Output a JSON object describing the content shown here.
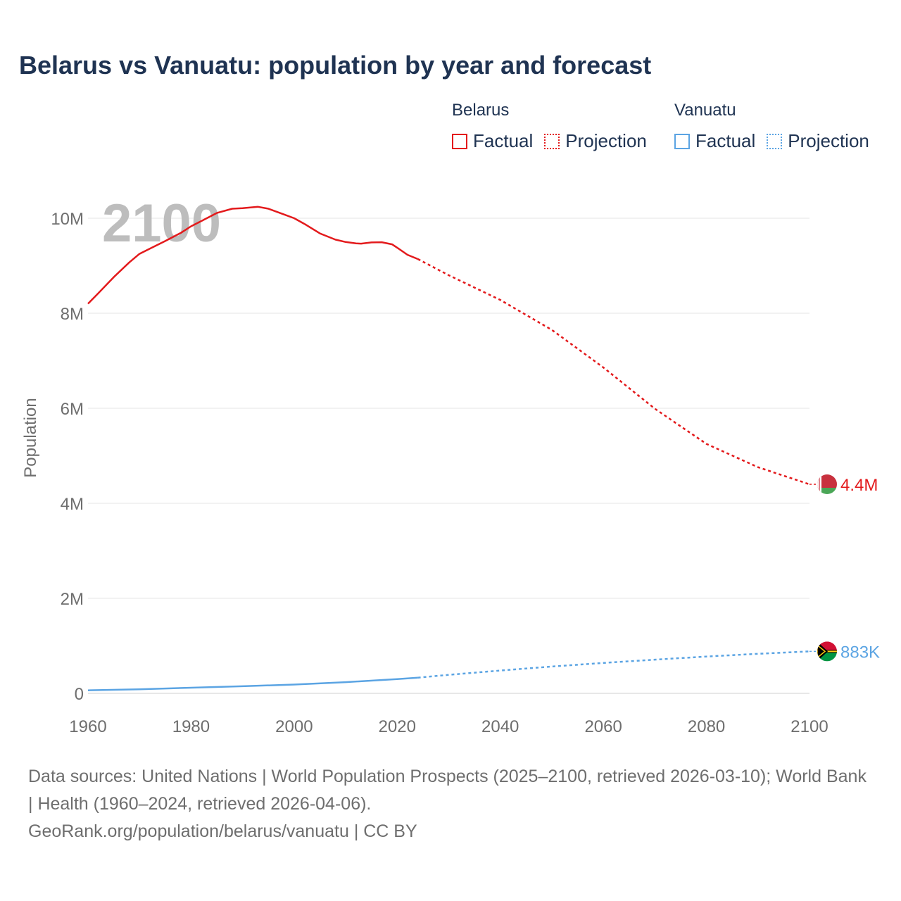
{
  "title": "Belarus vs Vanuatu: population by year and forecast",
  "legend": {
    "groups": [
      {
        "name": "Belarus",
        "color": "#e31a1c",
        "factual_label": "Factual",
        "projection_label": "Projection"
      },
      {
        "name": "Vanuatu",
        "color": "#5ba4e3",
        "factual_label": "Factual",
        "projection_label": "Projection"
      }
    ]
  },
  "footer": {
    "sources": "Data sources: United Nations | World Population Prospects (2025–2100, retrieved 2026-03-10); World Bank | Health (1960–2024, retrieved 2026-04-06).",
    "credit": "GeoRank.org/population/belarus/vanuatu | CC BY"
  },
  "chart_data": {
    "type": "line",
    "title": "Belarus vs Vanuatu: population by year and forecast",
    "ylabel": "Population",
    "xlabel": "",
    "year_overlay": "2100",
    "xlim": [
      1960,
      2100
    ],
    "ylim": [
      0,
      10000000
    ],
    "x_ticks": [
      1960,
      1980,
      2000,
      2020,
      2040,
      2060,
      2080,
      2100
    ],
    "x_tick_labels": [
      "1960",
      "1980",
      "2000",
      "2020",
      "2040",
      "2060",
      "2080",
      "2100"
    ],
    "y_ticks": [
      0,
      2000000,
      4000000,
      6000000,
      8000000,
      10000000
    ],
    "y_tick_labels": [
      "0",
      "2M",
      "4M",
      "6M",
      "8M",
      "10M"
    ],
    "grid": true,
    "series": [
      {
        "name": "Belarus",
        "color": "#e31a1c",
        "end_label": "4.4M",
        "factual": [
          [
            1960,
            8200000
          ],
          [
            1962,
            8420000
          ],
          [
            1965,
            8760000
          ],
          [
            1968,
            9070000
          ],
          [
            1970,
            9250000
          ],
          [
            1972,
            9360000
          ],
          [
            1975,
            9520000
          ],
          [
            1978,
            9690000
          ],
          [
            1980,
            9830000
          ],
          [
            1982,
            9940000
          ],
          [
            1985,
            10110000
          ],
          [
            1988,
            10200000
          ],
          [
            1990,
            10210000
          ],
          [
            1993,
            10240000
          ],
          [
            1995,
            10200000
          ],
          [
            1998,
            10080000
          ],
          [
            2000,
            10000000
          ],
          [
            2002,
            9880000
          ],
          [
            2005,
            9680000
          ],
          [
            2008,
            9550000
          ],
          [
            2010,
            9500000
          ],
          [
            2012,
            9470000
          ],
          [
            2013,
            9465000
          ],
          [
            2015,
            9490000
          ],
          [
            2017,
            9495000
          ],
          [
            2019,
            9450000
          ],
          [
            2020,
            9380000
          ],
          [
            2022,
            9230000
          ],
          [
            2024,
            9140000
          ]
        ],
        "projection": [
          [
            2024,
            9140000
          ],
          [
            2030,
            8800000
          ],
          [
            2040,
            8280000
          ],
          [
            2050,
            7650000
          ],
          [
            2060,
            6860000
          ],
          [
            2070,
            5990000
          ],
          [
            2080,
            5250000
          ],
          [
            2090,
            4760000
          ],
          [
            2100,
            4400000
          ]
        ]
      },
      {
        "name": "Vanuatu",
        "color": "#5ba4e3",
        "end_label": "883K",
        "factual": [
          [
            1960,
            64000
          ],
          [
            1970,
            85000
          ],
          [
            1980,
            118000
          ],
          [
            1990,
            150000
          ],
          [
            2000,
            185000
          ],
          [
            2010,
            236000
          ],
          [
            2020,
            300000
          ],
          [
            2024,
            330000
          ]
        ],
        "projection": [
          [
            2024,
            330000
          ],
          [
            2030,
            390000
          ],
          [
            2040,
            480000
          ],
          [
            2050,
            565000
          ],
          [
            2060,
            640000
          ],
          [
            2070,
            710000
          ],
          [
            2080,
            775000
          ],
          [
            2090,
            832000
          ],
          [
            2100,
            883000
          ]
        ]
      }
    ]
  }
}
